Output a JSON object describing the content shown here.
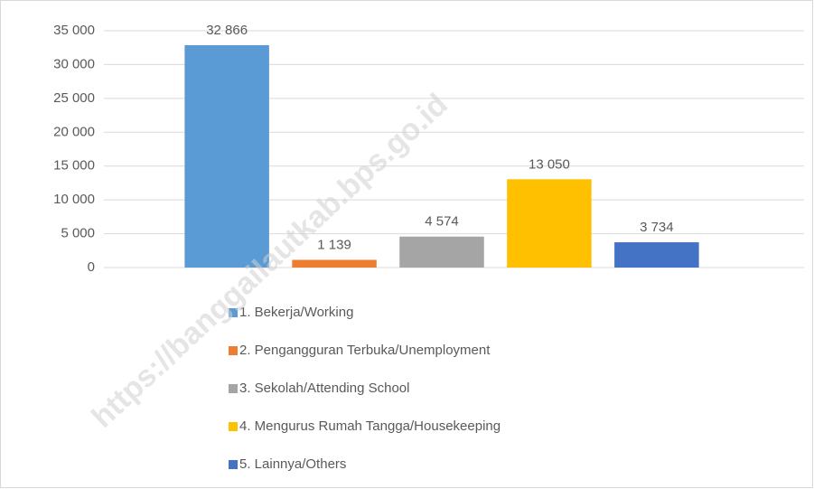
{
  "chart_data": {
    "type": "bar",
    "categories": [
      null
    ],
    "series": [
      {
        "name": "1. Bekerja/Working",
        "color": "#5b9bd5",
        "values": [
          32866
        ],
        "value_labels": [
          "32 866"
        ]
      },
      {
        "name": "2. Pengangguran Terbuka/Unemployment",
        "color": "#ed7d31",
        "values": [
          1139
        ],
        "value_labels": [
          "1 139"
        ]
      },
      {
        "name": "3. Sekolah/Attending School",
        "color": "#a5a5a5",
        "values": [
          4574
        ],
        "value_labels": [
          "4 574"
        ]
      },
      {
        "name": "4. Mengurus Rumah Tangga/Housekeeping",
        "color": "#ffc000",
        "values": [
          13050
        ],
        "value_labels": [
          "13 050"
        ]
      },
      {
        "name": "5. Lainnya/Others",
        "color": "#4472c4",
        "values": [
          3734
        ],
        "value_labels": [
          "3 734"
        ]
      }
    ],
    "ylim": [
      0,
      35000
    ],
    "yticks": [
      0,
      {
        "value": 5000,
        "label": "5 000"
      },
      {
        "value": 10000,
        "label": "10 000"
      },
      {
        "value": 15000,
        "label": "15 000"
      },
      {
        "value": 20000,
        "label": "20 000"
      },
      {
        "value": 25000,
        "label": "25 000"
      },
      {
        "value": 30000,
        "label": "30 000"
      },
      {
        "value": 35000,
        "label": "35 000"
      }
    ],
    "grid": true,
    "legend": "bottom",
    "watermark": "https://banggailautkab.bps.go.id"
  }
}
